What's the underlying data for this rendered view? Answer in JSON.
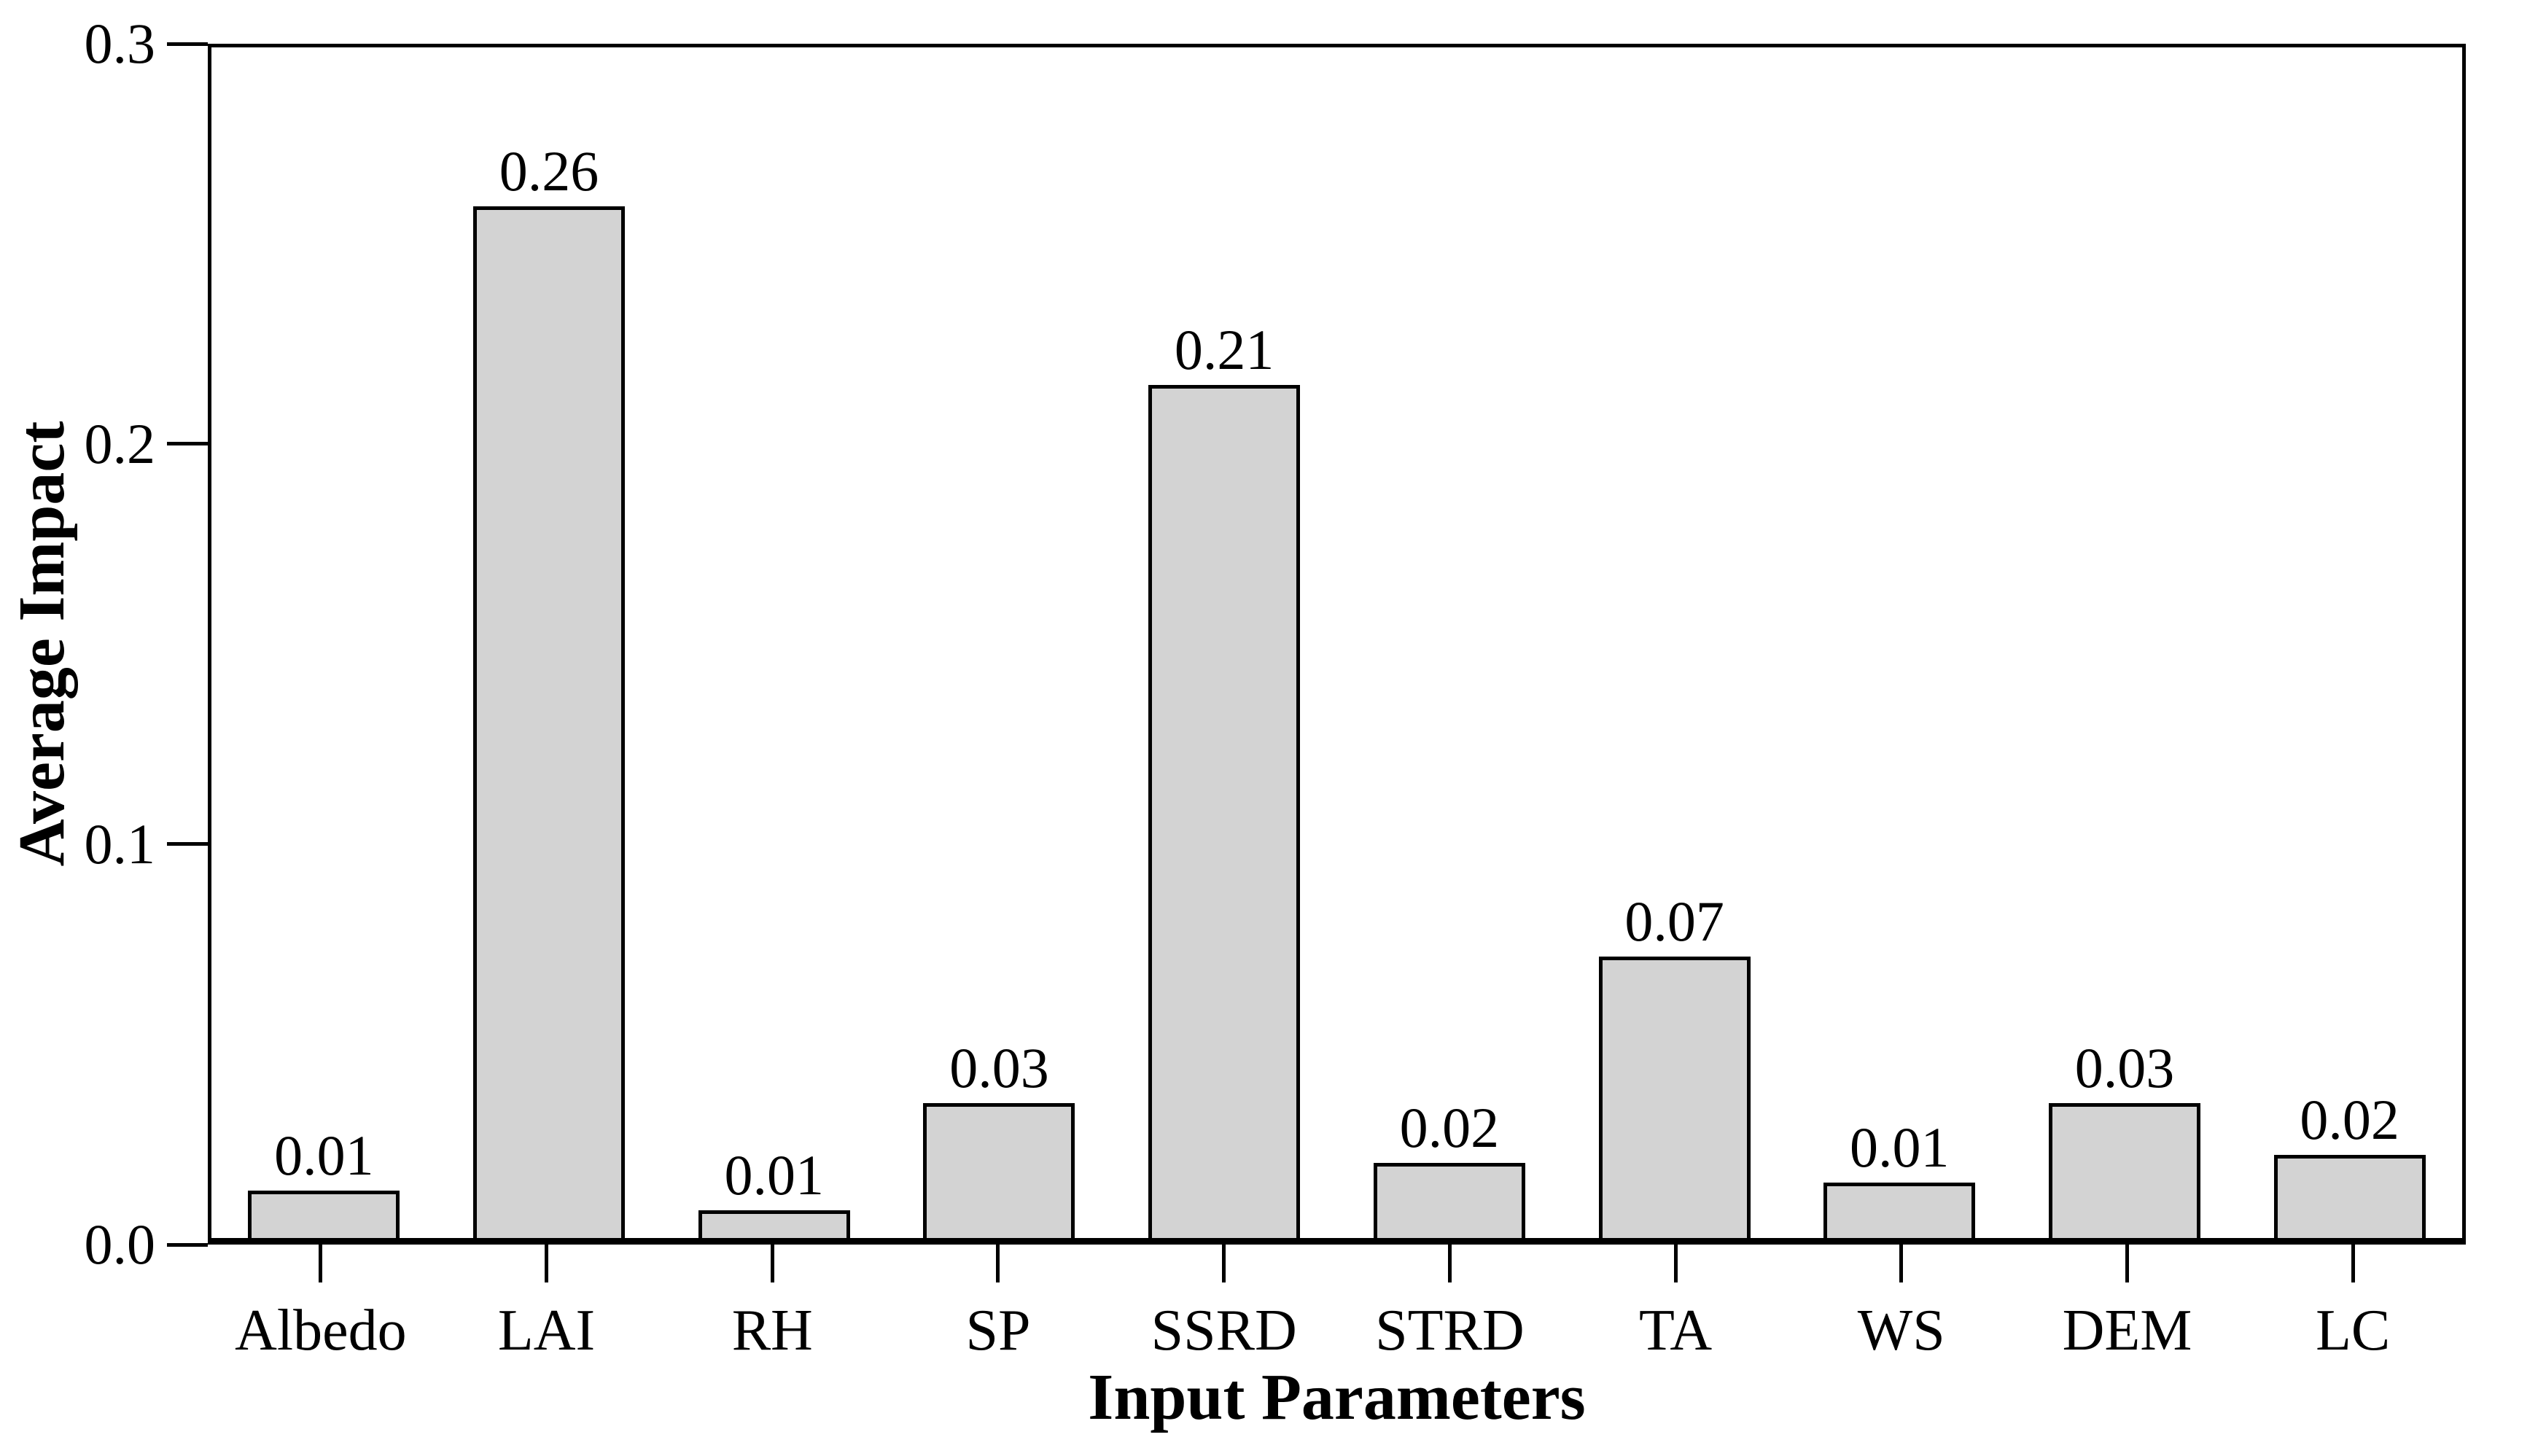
{
  "chart_data": {
    "type": "bar",
    "title": "",
    "xlabel": "Input Parameters",
    "ylabel": "Average Impact",
    "categories": [
      "Albedo",
      "LAI",
      "RH",
      "SP",
      "SSRD",
      "STRD",
      "TA",
      "WS",
      "DEM",
      "LC"
    ],
    "values": [
      0.01,
      0.26,
      0.01,
      0.03,
      0.21,
      0.02,
      0.07,
      0.01,
      0.03,
      0.02
    ],
    "value_labels": [
      "0.01",
      "0.26",
      "0.01",
      "0.03",
      "0.21",
      "0.02",
      "0.07",
      "0.01",
      "0.03",
      "0.02"
    ],
    "bar_heights_estimated": [
      0.012,
      0.26,
      0.007,
      0.034,
      0.215,
      0.019,
      0.071,
      0.014,
      0.034,
      0.021
    ],
    "ylim": [
      0,
      0.3
    ],
    "yticks": [
      0,
      0.1,
      0.2,
      0.3
    ],
    "ytick_labels": [
      "0.0",
      "0.1",
      "0.2",
      "0.3"
    ],
    "grid": false,
    "legend": false,
    "plot_frame": "box",
    "bar_fill_color": "#d3d3d3",
    "bar_border_color": "#000000",
    "axis_color": "#000000",
    "background_color": "#ffffff"
  }
}
